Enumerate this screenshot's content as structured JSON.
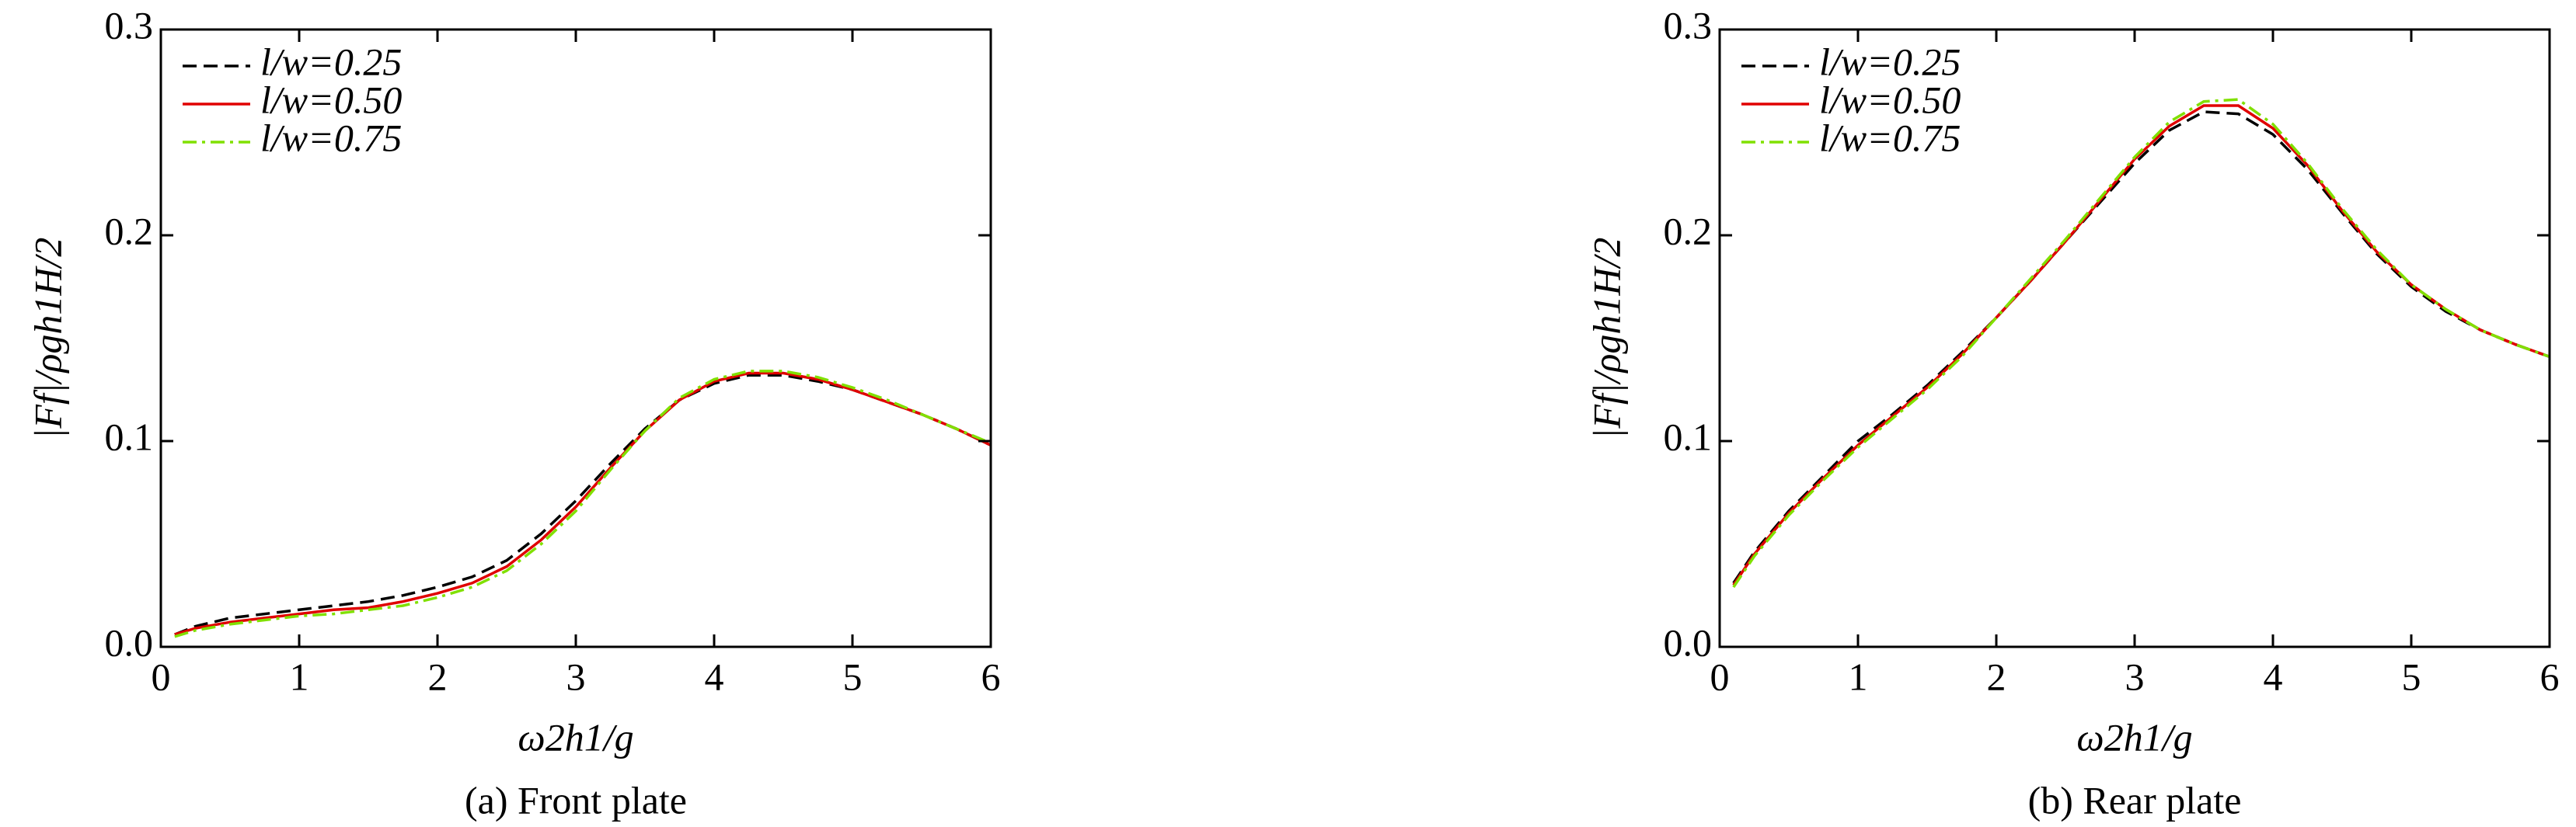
{
  "chart_data": [
    {
      "type": "line",
      "ylabel": "|Ff|/ρgh1H/2",
      "xlabel": "ω2h1/g",
      "caption": "(a) Front plate",
      "x": [
        0.1,
        0.25,
        0.5,
        0.75,
        1,
        1.25,
        1.5,
        1.75,
        2,
        2.25,
        2.5,
        2.75,
        3,
        3.25,
        3.5,
        3.75,
        4,
        4.25,
        4.5,
        4.75,
        5,
        5.25,
        5.5,
        5.75,
        6
      ],
      "xlim": [
        0,
        6
      ],
      "xticks": [
        0,
        1,
        2,
        3,
        4,
        5,
        6
      ],
      "ylim": [
        0,
        0.3
      ],
      "yticks": [
        {
          "value": 0,
          "label": "0.0"
        },
        0.1,
        0.2,
        0.3
      ],
      "legend": "upper left",
      "series": [
        {
          "name": "l/w=0.25",
          "color": "#000000",
          "dash": "dashed",
          "values": [
            0.006,
            0.01,
            0.014,
            0.016,
            0.018,
            0.02,
            0.022,
            0.025,
            0.029,
            0.034,
            0.042,
            0.055,
            0.071,
            0.089,
            0.106,
            0.12,
            0.128,
            0.132,
            0.132,
            0.129,
            0.125,
            0.119,
            0.113,
            0.106,
            0.098
          ]
        },
        {
          "name": "l/w=0.50",
          "color": "#e00000",
          "dash": "solid",
          "values": [
            0.006,
            0.009,
            0.012,
            0.014,
            0.016,
            0.018,
            0.019,
            0.022,
            0.026,
            0.031,
            0.039,
            0.052,
            0.068,
            0.087,
            0.105,
            0.12,
            0.129,
            0.133,
            0.133,
            0.13,
            0.125,
            0.119,
            0.113,
            0.106,
            0.098
          ]
        },
        {
          "name": "l/w=0.75",
          "color": "#80e000",
          "dash": "dashdot",
          "values": [
            0.005,
            0.008,
            0.011,
            0.013,
            0.015,
            0.016,
            0.018,
            0.02,
            0.024,
            0.029,
            0.037,
            0.05,
            0.066,
            0.086,
            0.105,
            0.121,
            0.13,
            0.134,
            0.134,
            0.131,
            0.126,
            0.12,
            0.113,
            0.106,
            0.099
          ]
        }
      ]
    },
    {
      "type": "line",
      "ylabel": "|Ff|/ρgh1H/2",
      "xlabel": "ω2h1/g",
      "caption": "(b) Rear plate",
      "x": [
        0.1,
        0.25,
        0.5,
        0.75,
        1,
        1.25,
        1.5,
        1.75,
        2,
        2.25,
        2.5,
        2.75,
        3,
        3.25,
        3.5,
        3.75,
        4,
        4.25,
        4.5,
        4.75,
        5,
        5.25,
        5.5,
        5.75,
        6
      ],
      "xlim": [
        0,
        6
      ],
      "xticks": [
        0,
        1,
        2,
        3,
        4,
        5,
        6
      ],
      "ylim": [
        0,
        0.3
      ],
      "yticks": [
        {
          "value": 0,
          "label": "0.0"
        },
        0.1,
        0.2,
        0.3
      ],
      "legend": "upper left",
      "series": [
        {
          "name": "l/w=0.25",
          "color": "#000000",
          "dash": "dashed",
          "values": [
            0.031,
            0.046,
            0.066,
            0.083,
            0.1,
            0.113,
            0.127,
            0.143,
            0.16,
            0.178,
            0.197,
            0.216,
            0.235,
            0.251,
            0.26,
            0.259,
            0.249,
            0.232,
            0.211,
            0.191,
            0.175,
            0.163,
            0.154,
            0.147,
            0.141
          ]
        },
        {
          "name": "l/w=0.50",
          "color": "#e00000",
          "dash": "solid",
          "values": [
            0.03,
            0.045,
            0.065,
            0.082,
            0.098,
            0.112,
            0.126,
            0.142,
            0.16,
            0.178,
            0.197,
            0.217,
            0.237,
            0.253,
            0.263,
            0.263,
            0.252,
            0.234,
            0.212,
            0.192,
            0.176,
            0.164,
            0.154,
            0.147,
            0.141
          ]
        },
        {
          "name": "l/w=0.75",
          "color": "#80e000",
          "dash": "dashdot",
          "values": [
            0.029,
            0.044,
            0.064,
            0.081,
            0.097,
            0.111,
            0.125,
            0.141,
            0.16,
            0.179,
            0.198,
            0.218,
            0.238,
            0.255,
            0.265,
            0.266,
            0.254,
            0.235,
            0.213,
            0.193,
            0.176,
            0.164,
            0.154,
            0.147,
            0.141
          ]
        }
      ]
    }
  ]
}
